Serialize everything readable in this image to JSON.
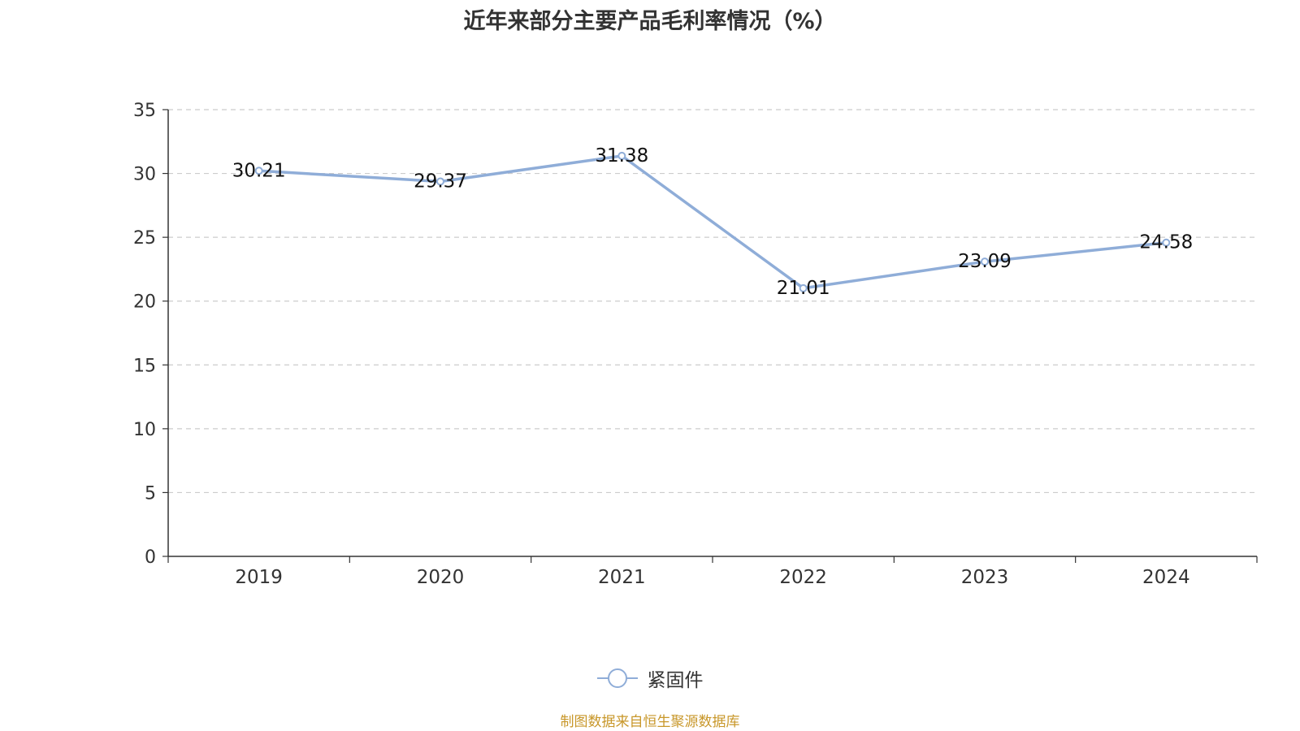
{
  "title": "近年来部分主要产品毛利率情况（%）",
  "source": "制图数据来自恒生聚源数据库",
  "colors": {
    "series": "#8fadd8",
    "source": "#c8972a",
    "axis": "#333333",
    "grid": "#cccccc",
    "text": "#333333"
  },
  "chart_data": {
    "type": "line",
    "categories": [
      "2019",
      "2020",
      "2021",
      "2022",
      "2023",
      "2024"
    ],
    "series": [
      {
        "name": "紧固件",
        "values": [
          30.21,
          29.37,
          31.38,
          21.01,
          23.09,
          24.58
        ]
      }
    ],
    "data_labels": [
      "30.21",
      "29.37",
      "31.38",
      "21.01",
      "23.09",
      "24.58"
    ],
    "ylim": [
      0,
      35
    ],
    "yticks": [
      "0",
      "5",
      "10",
      "15",
      "20",
      "25",
      "30",
      "35"
    ],
    "grid": true,
    "grid_style": "dashed",
    "legend_position": "bottom-center"
  }
}
